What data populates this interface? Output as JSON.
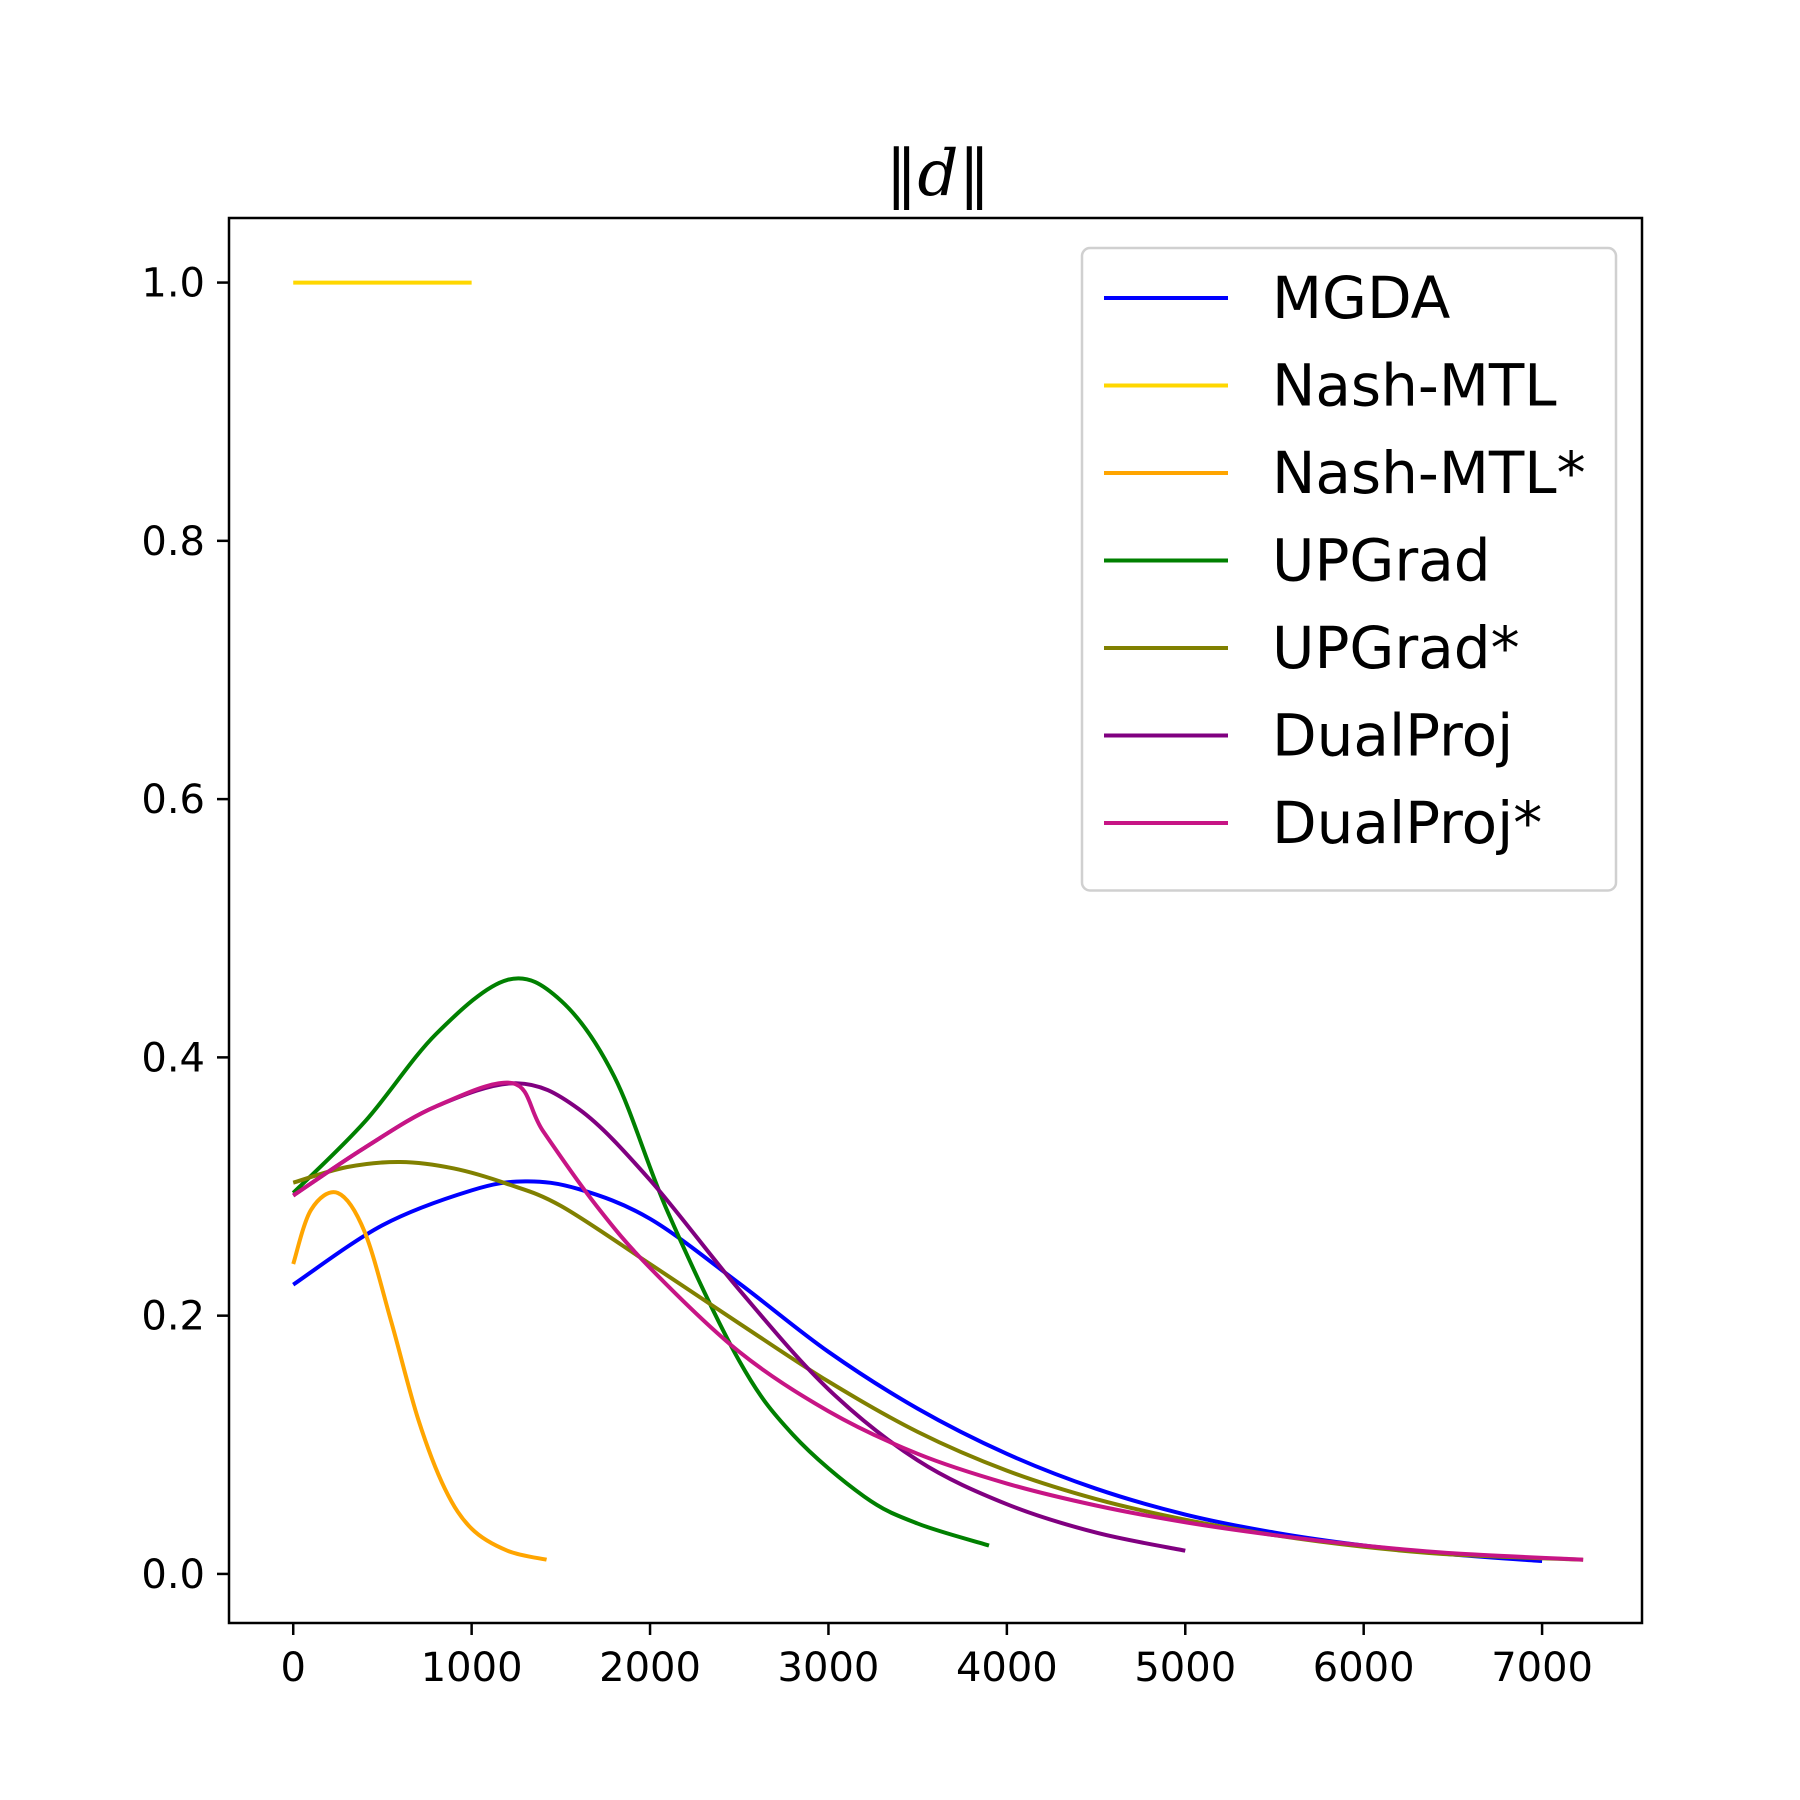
{
  "chart_data": {
    "type": "line",
    "title": "‖d‖",
    "xlabel": "",
    "ylabel": "",
    "xlim": [
      -360,
      7560
    ],
    "ylim": [
      -0.038,
      1.05
    ],
    "xticks": [
      0,
      1000,
      2000,
      3000,
      4000,
      5000,
      6000,
      7000
    ],
    "xtick_labels": [
      "0",
      "1000",
      "2000",
      "3000",
      "4000",
      "5000",
      "6000",
      "7000"
    ],
    "yticks": [
      0.0,
      0.2,
      0.4,
      0.6,
      0.8,
      1.0
    ],
    "ytick_labels": [
      "0.0",
      "0.2",
      "0.4",
      "0.6",
      "0.8",
      "1.0"
    ],
    "grid": false,
    "legend_position": "top-right",
    "series": [
      {
        "name": "MGDA",
        "color": "#0000ff",
        "x": [
          0,
          500,
          1000,
          1300,
          1600,
          2000,
          2500,
          3000,
          3500,
          4000,
          4500,
          5000,
          5500,
          6000,
          6500,
          7000
        ],
        "y": [
          0.224,
          0.27,
          0.297,
          0.304,
          0.298,
          0.275,
          0.225,
          0.172,
          0.128,
          0.093,
          0.066,
          0.046,
          0.032,
          0.022,
          0.015,
          0.01
        ]
      },
      {
        "name": "Nash-MTL",
        "color": "#ffd700",
        "x": [
          0,
          1000
        ],
        "y": [
          1.0,
          1.0
        ]
      },
      {
        "name": "Nash-MTL*",
        "color": "#ffa500",
        "x": [
          0,
          100,
          250,
          400,
          550,
          700,
          850,
          1000,
          1200,
          1420
        ],
        "y": [
          0.24,
          0.282,
          0.295,
          0.265,
          0.195,
          0.12,
          0.066,
          0.035,
          0.018,
          0.011
        ]
      },
      {
        "name": "UPGrad",
        "color": "#008000",
        "x": [
          0,
          400,
          800,
          1200,
          1500,
          1800,
          2100,
          2500,
          2800,
          3200,
          3500,
          3900
        ],
        "y": [
          0.295,
          0.35,
          0.418,
          0.46,
          0.444,
          0.385,
          0.28,
          0.165,
          0.108,
          0.06,
          0.039,
          0.022
        ]
      },
      {
        "name": "UPGrad*",
        "color": "#808000",
        "x": [
          0,
          300,
          600,
          900,
          1200,
          1500,
          2000,
          2500,
          3000,
          3500,
          4000,
          4500,
          5000,
          5500,
          6000,
          6500,
          7230
        ],
        "y": [
          0.303,
          0.315,
          0.319,
          0.314,
          0.302,
          0.285,
          0.24,
          0.194,
          0.149,
          0.11,
          0.08,
          0.058,
          0.042,
          0.03,
          0.021,
          0.015,
          0.011
        ]
      },
      {
        "name": "DualProj",
        "color": "#800080",
        "x": [
          0,
          400,
          800,
          1250,
          1600,
          2000,
          2500,
          3000,
          3500,
          4000,
          4500,
          5000
        ],
        "y": [
          0.293,
          0.33,
          0.362,
          0.38,
          0.36,
          0.305,
          0.22,
          0.143,
          0.088,
          0.054,
          0.032,
          0.018
        ]
      },
      {
        "name": "DualProj*",
        "color": "#c71585",
        "x": [
          0,
          400,
          800,
          1230,
          1400,
          1700,
          2000,
          2500,
          3000,
          3500,
          4000,
          4500,
          5000,
          5500,
          6000,
          6500,
          7230
        ],
        "y": [
          0.293,
          0.33,
          0.362,
          0.38,
          0.343,
          0.285,
          0.237,
          0.172,
          0.126,
          0.093,
          0.07,
          0.053,
          0.04,
          0.03,
          0.022,
          0.016,
          0.011
        ]
      }
    ]
  }
}
